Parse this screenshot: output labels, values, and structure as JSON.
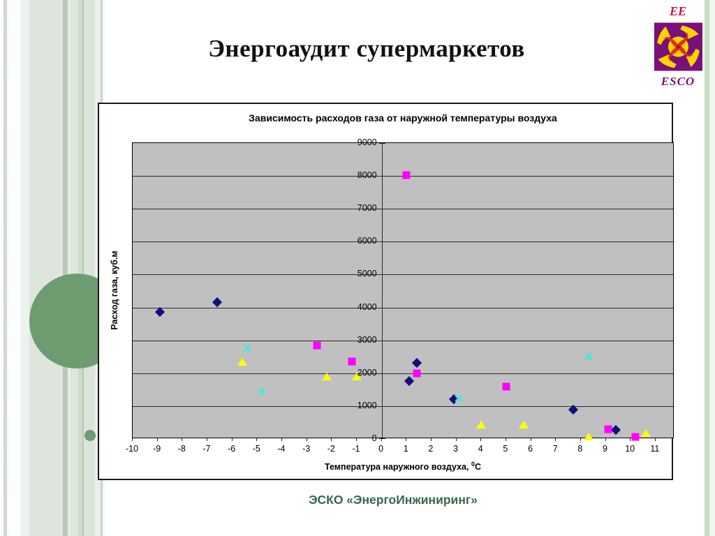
{
  "page": {
    "title": "Энергоаудит супермаркетов",
    "footer": "ЭСКО «ЭнергоИнжиниринг»"
  },
  "logo": {
    "top_text": "EE",
    "bottom_text": "ESCO",
    "colors": {
      "square": "#7b0f7b",
      "swirl_yellow": "#ffd400",
      "swirl_red": "#e03010",
      "top_text": "#c4134f",
      "bottom_text": "#7b0f7b"
    }
  },
  "chart_data": {
    "type": "scatter",
    "title": "Зависимость расходов газа от наружной температуры воздуха",
    "xlabel": "Температура наружного воздуха, 0С",
    "xlabel_parts": {
      "text": "Температура наружного воздуха, ",
      "sup": "0",
      "suffix": "С"
    },
    "ylabel": "Расход газа, куб.м",
    "xlim": [
      -10,
      11.75
    ],
    "ylim": [
      0,
      9000
    ],
    "x_ticks": [
      -10,
      -9,
      -8,
      -7,
      -6,
      -5,
      -4,
      -3,
      -2,
      -1,
      0,
      1,
      2,
      3,
      4,
      5,
      6,
      7,
      8,
      9,
      10,
      11
    ],
    "y_ticks": [
      0,
      1000,
      2000,
      3000,
      4000,
      5000,
      6000,
      7000,
      8000,
      9000
    ],
    "grid": "horizontal",
    "legend": "none",
    "plot_bg": "#c0c0c0",
    "axis_color": "#2a2a2a",
    "value_axis_at_x": 0,
    "series": [
      {
        "name": "navy-diamonds",
        "marker": "diamond",
        "color": "#10107e",
        "points": [
          [
            -8.9,
            3870
          ],
          [
            -6.6,
            4170
          ],
          [
            1.1,
            1760
          ],
          [
            1.4,
            2320
          ],
          [
            2.9,
            1220
          ],
          [
            7.7,
            890
          ],
          [
            9.4,
            280
          ]
        ]
      },
      {
        "name": "magenta-squares",
        "marker": "square",
        "color": "#ff00ff",
        "points": [
          [
            -2.6,
            2840
          ],
          [
            -1.2,
            2350
          ],
          [
            1.0,
            8020
          ],
          [
            1.4,
            1990
          ],
          [
            5.0,
            1590
          ],
          [
            9.1,
            290
          ],
          [
            10.2,
            60
          ]
        ]
      },
      {
        "name": "yellow-triangles",
        "marker": "triangle",
        "color": "#ffff00",
        "points": [
          [
            -5.6,
            2340
          ],
          [
            -2.2,
            1890
          ],
          [
            -1.0,
            1890
          ],
          [
            4.0,
            420
          ],
          [
            5.7,
            420
          ],
          [
            8.3,
            60
          ],
          [
            10.6,
            170
          ]
        ]
      },
      {
        "name": "cyan-crosses",
        "marker": "x",
        "color": "#4fe3dc",
        "points": [
          [
            -5.4,
            2770
          ],
          [
            -4.8,
            1450
          ],
          [
            3.1,
            1240
          ],
          [
            8.3,
            2500
          ]
        ]
      }
    ]
  }
}
